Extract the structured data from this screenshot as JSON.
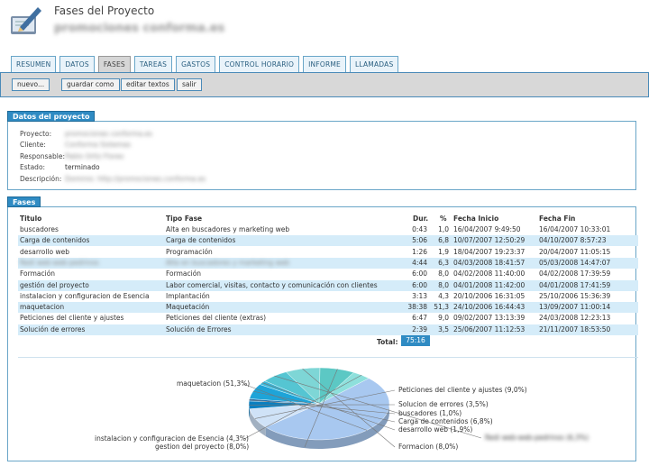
{
  "header": {
    "title": "Fases del Proyecto",
    "subtitle": "promociones conforma.es"
  },
  "tabs": [
    {
      "label": "RESUMEN",
      "active": false
    },
    {
      "label": "DATOS",
      "active": false
    },
    {
      "label": "FASES",
      "active": true
    },
    {
      "label": "TAREAS",
      "active": false
    },
    {
      "label": "GASTOS",
      "active": false
    },
    {
      "label": "CONTROL HORARIO",
      "active": false
    },
    {
      "label": "INFORME",
      "active": false
    },
    {
      "label": "LLAMADAS",
      "active": false
    }
  ],
  "toolbar": {
    "new_label": "nuevo...",
    "save_label": "guardar como",
    "edit_label": "editar textos",
    "exit_label": "salir"
  },
  "project": {
    "title": "Datos del proyecto",
    "fields": [
      {
        "label": "Proyecto:",
        "value": "promociones conforma.es",
        "blurred": true
      },
      {
        "label": "Cliente:",
        "value": "Conforma Sistemas",
        "blurred": true
      },
      {
        "label": "Responsable:",
        "value": "Pablo Ortiz Flores",
        "blurred": true
      },
      {
        "label": "Estado:",
        "value": "terminado",
        "blurred": false
      },
      {
        "label": "Descripción:",
        "value": "Dominio: http://promociones.conforma.es",
        "blurred": true
      }
    ]
  },
  "phases": {
    "title": "Fases",
    "headers": {
      "title": "Titulo",
      "type": "Tipo Fase",
      "duration": "Dur.",
      "percent": "%",
      "start": "Fecha Inicio",
      "end": "Fecha Fin"
    },
    "rows": [
      {
        "title": "buscadores",
        "type": "Alta en buscadores y marketing web",
        "dur": "0:43",
        "pct": "1,0",
        "start": "16/04/2007 9:49:50",
        "end": "16/04/2007 10:33:01",
        "blurred": false
      },
      {
        "title": "Carga de contenidos",
        "type": "Carga de contenidos",
        "dur": "5:06",
        "pct": "6,8",
        "start": "10/07/2007 12:50:29",
        "end": "04/10/2007 8:57:23",
        "blurred": false
      },
      {
        "title": "desarrollo web",
        "type": "Programación",
        "dur": "1:26",
        "pct": "1,9",
        "start": "18/04/2007 19:23:37",
        "end": "20/04/2007 11:05:15",
        "blurred": false
      },
      {
        "title": "Redi web-web-pedrinos",
        "type": "Alta en buscadores y marketing web",
        "dur": "4:44",
        "pct": "6,3",
        "start": "04/03/2008 18:41:57",
        "end": "05/03/2008 14:47:07",
        "blurred": true
      },
      {
        "title": "Formación",
        "type": "Formación",
        "dur": "6:00",
        "pct": "8,0",
        "start": "04/02/2008 11:40:00",
        "end": "04/02/2008 17:39:59",
        "blurred": false
      },
      {
        "title": "gestión del proyecto",
        "type": "Labor comercial, visitas, contacto y comunicación con clientes",
        "dur": "6:00",
        "pct": "8,0",
        "start": "04/01/2008 11:42:00",
        "end": "04/01/2008 17:41:59",
        "blurred": false
      },
      {
        "title": "instalacion y configuracion de Esencia",
        "type": "Implantación",
        "dur": "3:13",
        "pct": "4,3",
        "start": "20/10/2006 16:31:05",
        "end": "25/10/2006 15:36:39",
        "blurred": false
      },
      {
        "title": "maquetacion",
        "type": "Maquetación",
        "dur": "38:38",
        "pct": "51,3",
        "start": "24/10/2006 16:44:43",
        "end": "13/09/2007 11:00:14",
        "blurred": false
      },
      {
        "title": "Peticiones del cliente y ajustes",
        "type": "Peticiones del cliente (extras)",
        "dur": "6:47",
        "pct": "9,0",
        "start": "09/02/2007 13:13:39",
        "end": "24/03/2008 12:23:13",
        "blurred": false
      },
      {
        "title": "Solución de errores",
        "type": "Solución de Errores",
        "dur": "2:39",
        "pct": "3,5",
        "start": "25/06/2007 11:12:53",
        "end": "21/11/2007 18:53:50",
        "blurred": false
      }
    ],
    "total_label": "Total:",
    "total_value": "75:16"
  },
  "pie": {
    "slices": [
      {
        "label": "maquetacion (51,3%)",
        "value": 51.3,
        "color": "#a8c8f0"
      },
      {
        "label": "Peticiones del cliente y ajustes (9,0%)",
        "value": 9.0,
        "color": "#cfe2f7"
      },
      {
        "label": "Solucion de errores (3,5%)",
        "value": 3.5,
        "color": "#0a7fc0"
      },
      {
        "label": "buscadores (1,0%)",
        "value": 1.0,
        "color": "#1a6fb0"
      },
      {
        "label": "Carga de contenidos (6,8%)",
        "value": 6.8,
        "color": "#1ea4d8"
      },
      {
        "label": "desarrollo web (1,9%)",
        "value": 1.9,
        "color": "#3ab7d8"
      },
      {
        "label": "Redi web-web-pedrinos (6,3%)",
        "value": 6.3,
        "color": "#55c5d2",
        "blurred": true
      },
      {
        "label": "Formacion (8,0%)",
        "value": 8.0,
        "color": "#7ed6d6"
      },
      {
        "label": "gestion del proyecto (8,0%)",
        "value": 8.0,
        "color": "#5cc8c4"
      },
      {
        "label": "instalacion y configuracion de Esencia (4,3%)",
        "value": 4.3,
        "color": "#8ee0dc"
      }
    ]
  }
}
